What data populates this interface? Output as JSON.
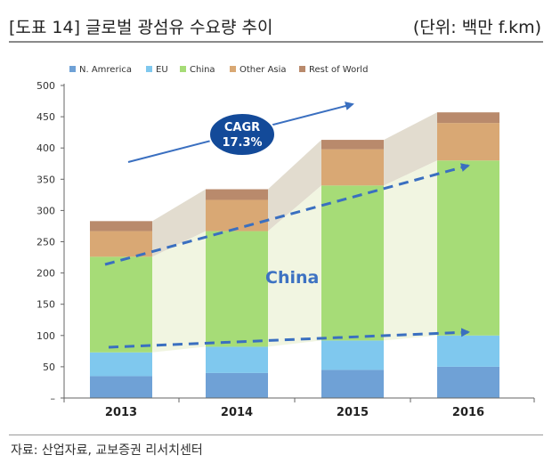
{
  "header": {
    "title": "[도표 14] 글로벌 광섬유 수요량 추이",
    "unit": "(단위: 백만 f.km)"
  },
  "footer": {
    "source": "자료: 산업자료, 교보증권 리서치센터"
  },
  "chart_data": {
    "type": "bar",
    "stacked": true,
    "categories": [
      "2013",
      "2014",
      "2015",
      "2016"
    ],
    "series": [
      {
        "name": "N. Amrerica",
        "color": "#6fa1d6",
        "values": [
          35,
          40,
          45,
          50
        ]
      },
      {
        "name": "EU",
        "color": "#7fc8ee",
        "values": [
          38,
          42,
          47,
          50
        ]
      },
      {
        "name": "China",
        "color": "#a6dc77",
        "values": [
          153,
          185,
          248,
          280
        ]
      },
      {
        "name": "Other Asia",
        "color": "#d9a874",
        "values": [
          41,
          50,
          58,
          60
        ]
      },
      {
        "name": "Rest of World",
        "color": "#b98a6c",
        "values": [
          16,
          17,
          15,
          17
        ]
      }
    ],
    "yticks": [
      0,
      50,
      100,
      150,
      200,
      250,
      300,
      350,
      400,
      450,
      500
    ],
    "ytick_labels": [
      "–",
      "50",
      "100",
      "150",
      "200",
      "250",
      "300",
      "350",
      "400",
      "450",
      "500"
    ],
    "ylim": [
      0,
      500
    ],
    "title": "",
    "xlabel": "",
    "ylabel": "",
    "legend_position": "top",
    "grid": false,
    "annotations": {
      "cagr_title": "CAGR",
      "cagr_value": "17.3%",
      "china_label": "China"
    }
  }
}
